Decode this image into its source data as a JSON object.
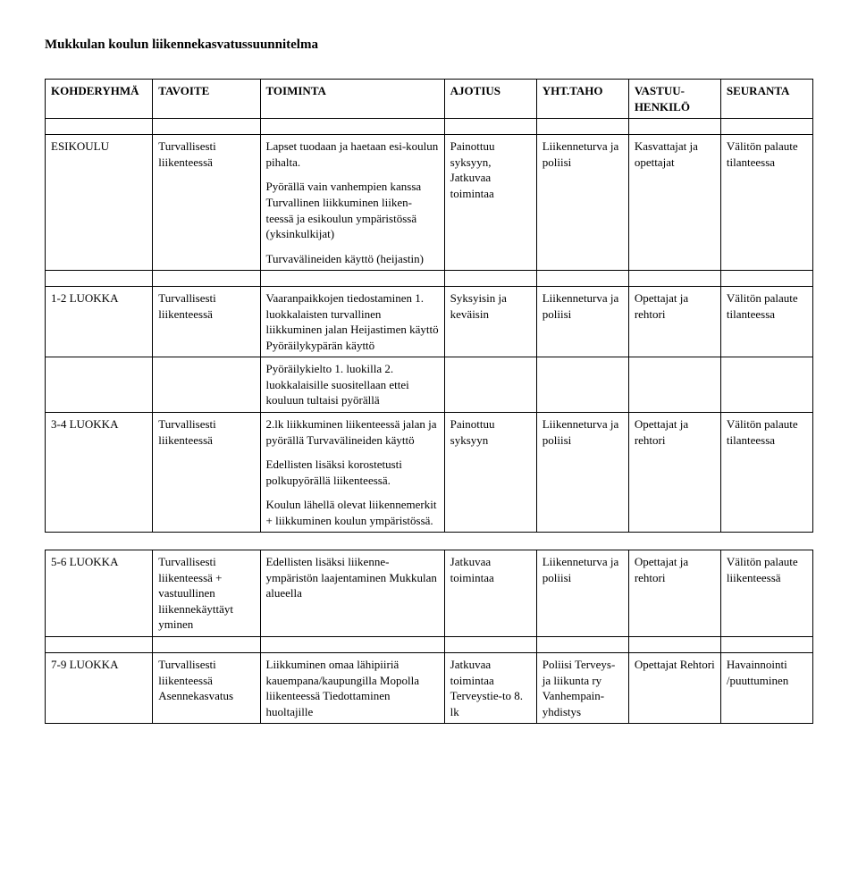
{
  "title": "Mukkulan koulun liikennekasvatussuunnitelma",
  "headers": {
    "c1": "KOHDERYHMÄ",
    "c2": "TAVOITE",
    "c3": "TOIMINTA",
    "c4": "AJOTIUS",
    "c5": "YHT.TAHO",
    "c6": "VASTUU-\nHENKILÖ",
    "c7": "SEURANTA"
  },
  "rows": [
    {
      "c1": "ESIKOULU",
      "c2": "Turvallisesti liikenteessä",
      "c3a": "Lapset tuodaan ja haetaan esi-koulun pihalta.",
      "c3b": "Pyörällä vain vanhempien kanssa Turvallinen liikkuminen liiken-teessä ja esikoulun ympäristössä (yksinkulkijat)",
      "c3c": "Turvavälineiden käyttö (heijastin)",
      "c4": "Painottuu syksyyn, Jatkuvaa toimintaa",
      "c5": "Liikenneturva ja poliisi",
      "c6": "Kasvattajat ja opettajat",
      "c7": "Välitön palaute tilanteessa"
    },
    {
      "c1": "1-2 LUOKKA",
      "c2": "Turvallisesti liikenteessä",
      "c3a": "Vaaranpaikkojen tiedostaminen 1. luokkalaisten turvallinen liikkuminen jalan\nHeijastimen käyttö\nPyöräilykypärän käyttö",
      "c4": "Syksyisin ja keväisin",
      "c5": "Liikenneturva ja poliisi",
      "c6": "Opettajat ja rehtori",
      "c7": "Välitön palaute tilanteessa"
    },
    {
      "extraOnly": true,
      "c3a": "Pyöräilykielto 1. luokilla\n2. luokkalaisille suositellaan ettei kouluun tultaisi pyörällä"
    },
    {
      "c1": "3-4 LUOKKA",
      "c2": "Turvallisesti liikenteessä",
      "c3a": "2.lk liikkuminen liikenteessä jalan ja pyörällä\nTurvavälineiden käyttö",
      "c3b": "Edellisten lisäksi korostetusti polkupyörällä liikenteessä.",
      "c3c": "Koulun lähellä olevat liikennemerkit + liikkuminen koulun ympäristössä.",
      "c4": "Painottuu syksyyn",
      "c5": "Liikenneturva ja poliisi",
      "c6": "Opettajat ja rehtori",
      "c7": "Välitön palaute tilanteessa"
    },
    {
      "c1": "5-6 LUOKKA",
      "c2": "Turvallisesti liikenteessä\n+\nvastuullinen liikennekäyttäyt yminen",
      "c3a": "Edellisten lisäksi liikenne-ympäristön laajentaminen Mukkulan alueella",
      "c4": "Jatkuvaa toimintaa",
      "c5": "Liikenneturva ja poliisi",
      "c6": "Opettajat ja rehtori",
      "c7": "Välitön palaute liikenteessä"
    },
    {
      "c1": "7-9 LUOKKA",
      "c2": "Turvallisesti liikenteessä Asennekasvatus",
      "c3a": "Liikkuminen omaa lähipiiriä kauempana/kaupungilla Mopolla liikenteessä Tiedottaminen huoltajille",
      "c4": "Jatkuvaa toimintaa Terveystie-to 8. lk",
      "c5": "Poliisi\nTerveys- ja liikunta ry Vanhempain-yhdistys",
      "c6": "Opettajat Rehtori",
      "c7": "Havainnointi /puuttuminen"
    }
  ]
}
